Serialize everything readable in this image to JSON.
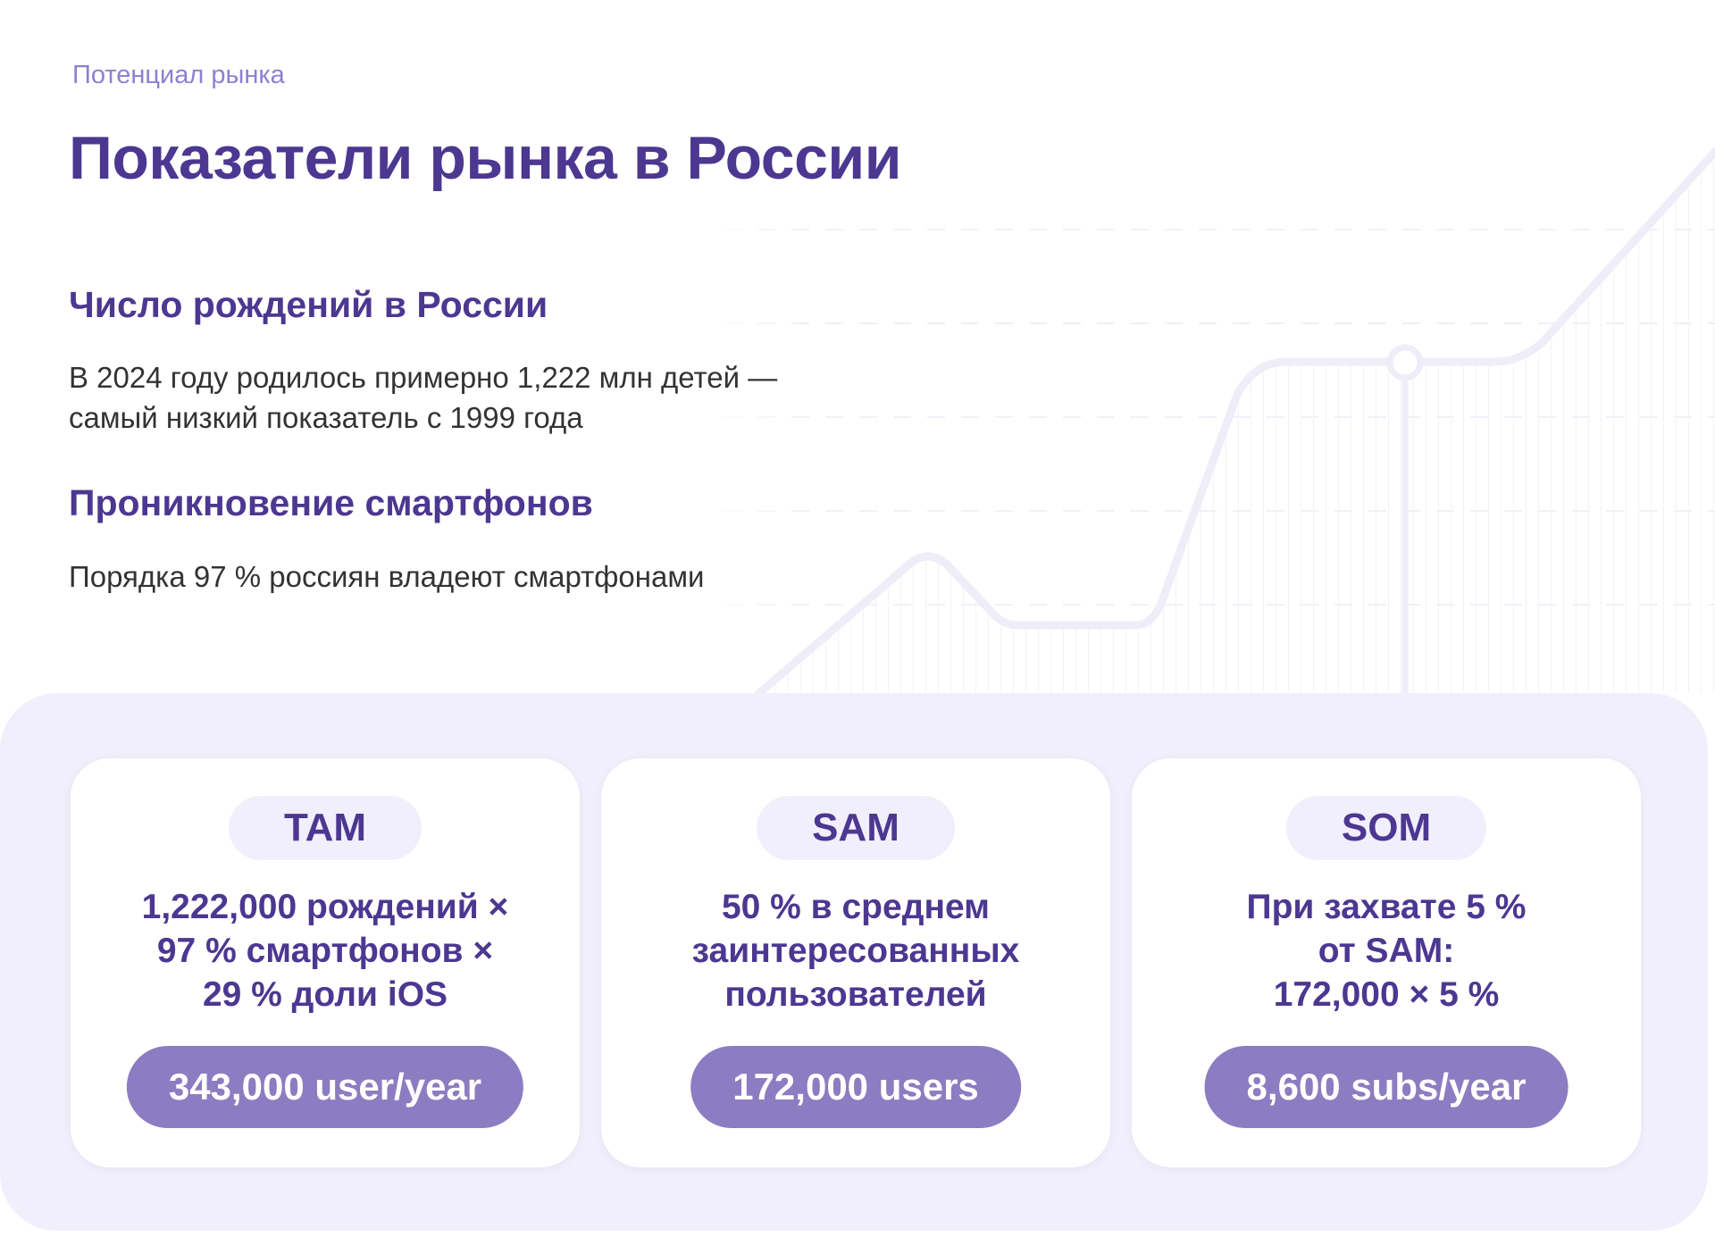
{
  "header": {
    "eyebrow": "Потенциал рынка",
    "title": "Показатели рынка в России"
  },
  "sections": [
    {
      "title": "Число рождений в России",
      "lines": [
        "В 2024 году родилось примерно 1,222 млн детей —",
        "самый низкий показатель с 1999 года"
      ]
    },
    {
      "title": "Проникновение смартфонов",
      "lines": [
        "Порядка 97 % россиян владеют смартфонами"
      ]
    }
  ],
  "cards": [
    {
      "label": "TAM",
      "formula": [
        "1,222,000 рождений ×",
        "97 % смартфонов ×",
        "29 % доли iOS"
      ],
      "result": "343,000 user/year"
    },
    {
      "label": "SAM",
      "formula": [
        "50 % в среднем",
        "заинтересованных",
        "пользователей"
      ],
      "result": "172,000 users"
    },
    {
      "label": "SOM",
      "formula": [
        "При захвате 5 %",
        "от SAM:",
        "172,000 × 5 %"
      ],
      "result": "8,600 subs/year"
    }
  ],
  "colors": {
    "primary": "#4c3791",
    "accent": "#8f7fd1",
    "pill": "#8c7cc1",
    "panel": "#f1effb",
    "decor_line": "#efedf8"
  },
  "decor": {
    "icon": "growth-line-decoration"
  }
}
